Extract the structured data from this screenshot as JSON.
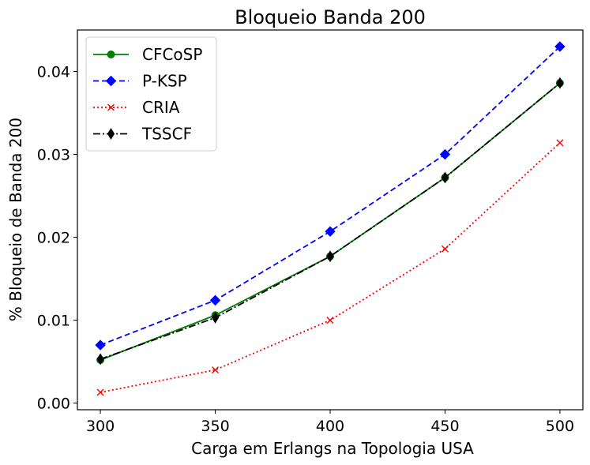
{
  "chart_data": {
    "type": "line",
    "title": "Bloqueio Banda 200",
    "xlabel": "Carga em Erlangs na Topologia USA",
    "ylabel": "% Bloqueio de Banda 200",
    "x": [
      300,
      350,
      400,
      450,
      500
    ],
    "xlim": [
      290,
      510
    ],
    "ylim": [
      -0.0008,
      0.045
    ],
    "xticks": [
      300,
      350,
      400,
      450,
      500
    ],
    "xtick_labels": [
      "300",
      "350",
      "400",
      "450",
      "500"
    ],
    "yticks": [
      0.0,
      0.01,
      0.02,
      0.03,
      0.04
    ],
    "ytick_labels": [
      "0.00",
      "0.01",
      "0.02",
      "0.03",
      "0.04"
    ],
    "grid": false,
    "legend_position": "upper-left",
    "series": [
      {
        "name": "CFCoSP",
        "values": [
          0.0052,
          0.0106,
          0.0177,
          0.0272,
          0.0386
        ],
        "color": "#008000",
        "dash": "solid",
        "marker": "circle"
      },
      {
        "name": "P-KSP",
        "values": [
          0.007,
          0.0124,
          0.0207,
          0.03,
          0.043
        ],
        "color": "#0000ff",
        "dash": "dashed",
        "marker": "diamond"
      },
      {
        "name": "CRIA",
        "values": [
          0.0013,
          0.004,
          0.01,
          0.0186,
          0.0314
        ],
        "color": "#ff0000",
        "dash": "dotted",
        "marker": "x"
      },
      {
        "name": "TSSCF",
        "values": [
          0.0053,
          0.0103,
          0.0177,
          0.0272,
          0.0386
        ],
        "color": "#000000",
        "dash": "dashdot",
        "marker": "thin-diamond"
      }
    ]
  }
}
